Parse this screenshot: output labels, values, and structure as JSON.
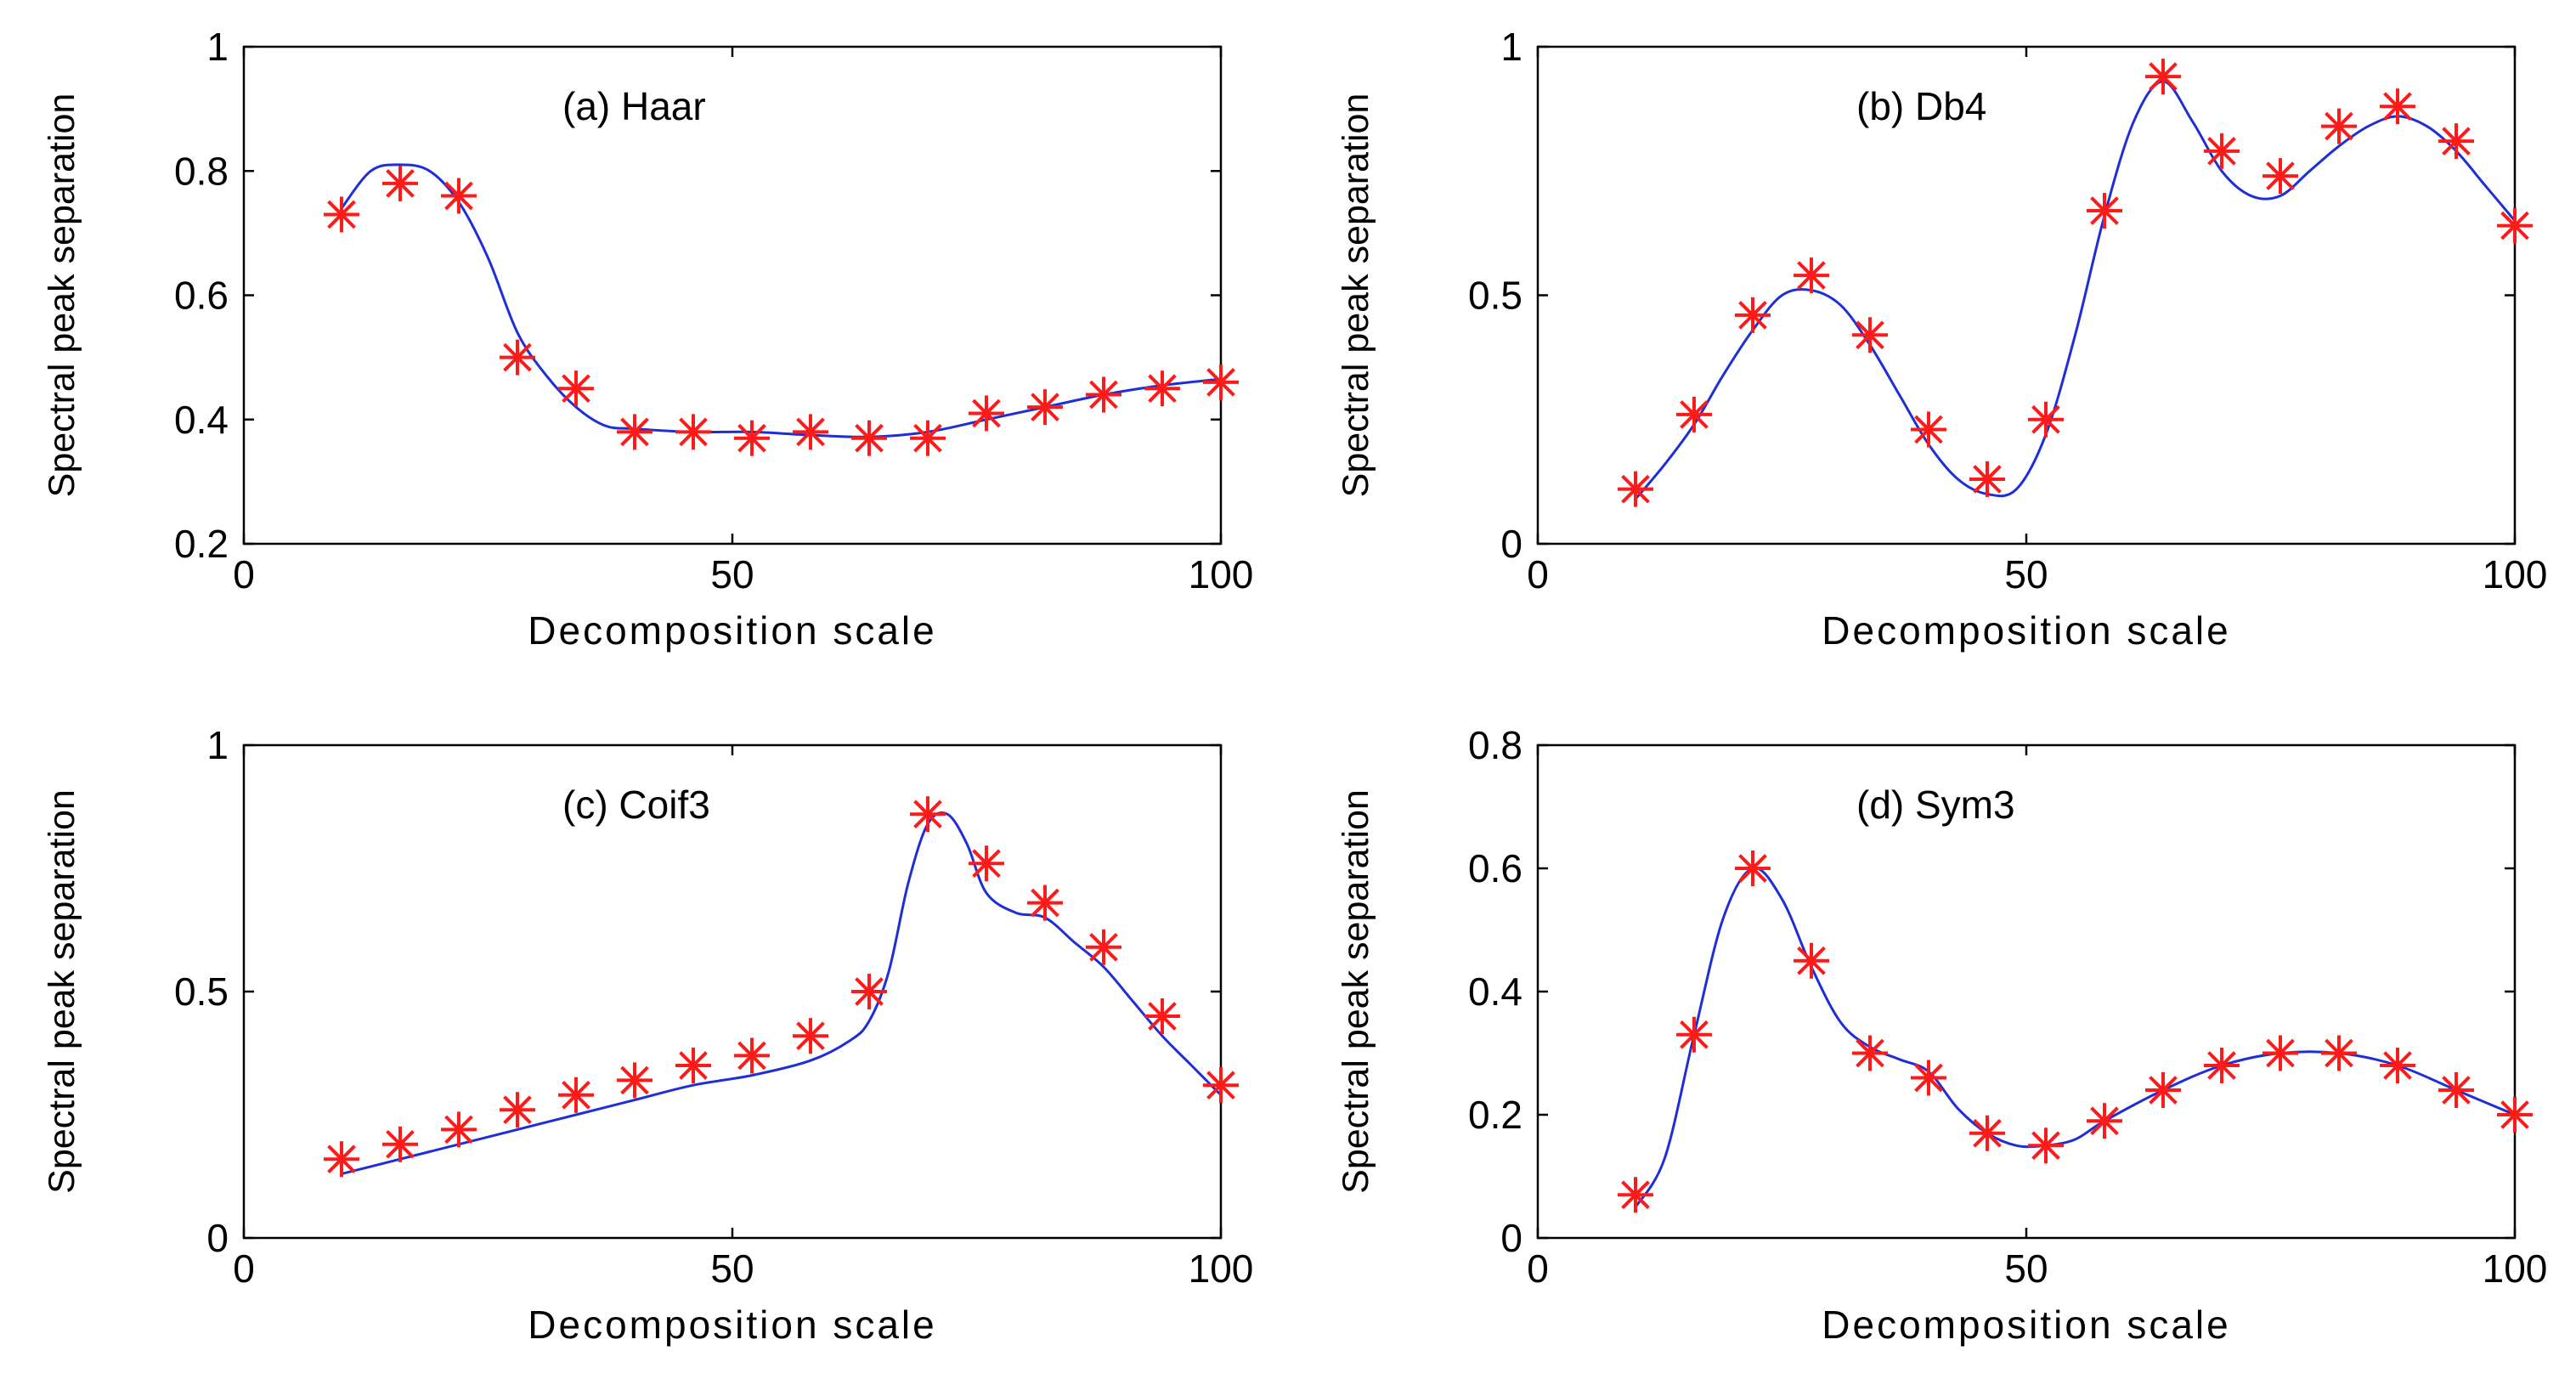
{
  "figure": {
    "colors": {
      "line": "#1f2fd6",
      "marker": "#ff1a1a",
      "axis": "#000000",
      "background": "#ffffff"
    }
  },
  "chart_data": [
    {
      "type": "line",
      "panel": "a",
      "title": "(a)  Haar",
      "xlabel": "Decomposition scale",
      "ylabel": "Spectral peak separation",
      "xlim": [
        0,
        100
      ],
      "ylim": [
        0.2,
        1
      ],
      "xticks": [
        0,
        50,
        100
      ],
      "xtick_labels": [
        "0",
        "50",
        "100"
      ],
      "yticks": [
        0.2,
        0.4,
        0.6,
        0.8,
        1
      ],
      "ytick_labels": [
        "0.2",
        "0.4",
        "0.6",
        "0.8",
        "1"
      ],
      "series": [
        {
          "name": "markers",
          "style": "markers",
          "x": [
            10,
            16,
            22,
            28,
            34,
            40,
            46,
            52,
            58,
            64,
            70,
            76,
            82,
            88,
            94,
            100
          ],
          "y": [
            0.73,
            0.78,
            0.76,
            0.5,
            0.45,
            0.38,
            0.38,
            0.37,
            0.38,
            0.37,
            0.37,
            0.41,
            0.42,
            0.44,
            0.45,
            0.46
          ]
        },
        {
          "name": "fit",
          "style": "line",
          "x": [
            10,
            13,
            16,
            19,
            22,
            25,
            28,
            31,
            34,
            37,
            40,
            46,
            52,
            58,
            64,
            70,
            76,
            82,
            88,
            94,
            100
          ],
          "y": [
            0.74,
            0.8,
            0.81,
            0.8,
            0.75,
            0.66,
            0.54,
            0.47,
            0.42,
            0.39,
            0.385,
            0.38,
            0.38,
            0.375,
            0.372,
            0.38,
            0.4,
            0.42,
            0.44,
            0.455,
            0.465
          ]
        }
      ]
    },
    {
      "type": "line",
      "panel": "b",
      "title": "(b)  Db4",
      "xlabel": "Decomposition scale",
      "ylabel": "Spectral peak separation",
      "xlim": [
        0,
        100
      ],
      "ylim": [
        0,
        1
      ],
      "xticks": [
        0,
        50,
        100
      ],
      "xtick_labels": [
        "0",
        "50",
        "100"
      ],
      "yticks": [
        0,
        0.5,
        1
      ],
      "ytick_labels": [
        "0",
        "0.5",
        "1"
      ],
      "series": [
        {
          "name": "markers",
          "style": "markers",
          "x": [
            10,
            16,
            22,
            28,
            34,
            40,
            46,
            52,
            58,
            64,
            70,
            76,
            82,
            88,
            94,
            100
          ],
          "y": [
            0.11,
            0.26,
            0.46,
            0.54,
            0.42,
            0.23,
            0.13,
            0.25,
            0.67,
            0.94,
            0.79,
            0.74,
            0.84,
            0.88,
            0.81,
            0.64
          ]
        },
        {
          "name": "fit",
          "style": "line",
          "x": [
            10,
            13,
            16,
            19,
            22,
            25,
            28,
            31,
            34,
            37,
            40,
            43,
            46,
            49,
            52,
            55,
            58,
            61,
            64,
            67,
            70,
            73,
            76,
            79,
            82,
            85,
            88,
            91,
            94,
            97,
            100
          ],
          "y": [
            0.09,
            0.16,
            0.24,
            0.34,
            0.43,
            0.5,
            0.51,
            0.48,
            0.4,
            0.3,
            0.2,
            0.13,
            0.1,
            0.11,
            0.22,
            0.42,
            0.66,
            0.85,
            0.93,
            0.85,
            0.75,
            0.7,
            0.7,
            0.75,
            0.8,
            0.84,
            0.86,
            0.84,
            0.79,
            0.72,
            0.65
          ]
        }
      ]
    },
    {
      "type": "line",
      "panel": "c",
      "title": "(c)  Coif3",
      "xlabel": "Decomposition scale",
      "ylabel": "Spectral peak separation",
      "xlim": [
        0,
        100
      ],
      "ylim": [
        0,
        1
      ],
      "xticks": [
        0,
        50,
        100
      ],
      "xtick_labels": [
        "0",
        "50",
        "100"
      ],
      "yticks": [
        0,
        0.5,
        1
      ],
      "ytick_labels": [
        "0",
        "0.5",
        "1"
      ],
      "series": [
        {
          "name": "markers",
          "style": "markers",
          "x": [
            10,
            16,
            22,
            28,
            34,
            40,
            46,
            52,
            58,
            64,
            70,
            76,
            82,
            88,
            94,
            100
          ],
          "y": [
            0.16,
            0.19,
            0.22,
            0.26,
            0.29,
            0.32,
            0.35,
            0.37,
            0.41,
            0.5,
            0.86,
            0.76,
            0.68,
            0.59,
            0.45,
            0.31
          ]
        },
        {
          "name": "fit",
          "style": "line",
          "x": [
            10,
            16,
            22,
            28,
            34,
            40,
            46,
            52,
            58,
            62,
            64,
            66,
            68,
            70,
            72,
            74,
            76,
            79,
            82,
            85,
            88,
            91,
            94,
            97,
            100
          ],
          "y": [
            0.13,
            0.16,
            0.19,
            0.22,
            0.25,
            0.28,
            0.31,
            0.33,
            0.36,
            0.4,
            0.44,
            0.54,
            0.72,
            0.84,
            0.86,
            0.8,
            0.7,
            0.66,
            0.65,
            0.6,
            0.55,
            0.48,
            0.41,
            0.35,
            0.29
          ]
        }
      ]
    },
    {
      "type": "line",
      "panel": "d",
      "title": "(d)  Sym3",
      "xlabel": "Decomposition scale",
      "ylabel": "Spectral peak separation",
      "xlim": [
        0,
        100
      ],
      "ylim": [
        0,
        0.8
      ],
      "xticks": [
        0,
        50,
        100
      ],
      "xtick_labels": [
        "0",
        "50",
        "100"
      ],
      "yticks": [
        0,
        0.2,
        0.4,
        0.6,
        0.8
      ],
      "ytick_labels": [
        "0",
        "0.2",
        "0.4",
        "0.6",
        "0.8"
      ],
      "series": [
        {
          "name": "markers",
          "style": "markers",
          "x": [
            10,
            16,
            22,
            28,
            34,
            40,
            46,
            52,
            58,
            64,
            70,
            76,
            82,
            88,
            94,
            100
          ],
          "y": [
            0.07,
            0.33,
            0.6,
            0.45,
            0.3,
            0.26,
            0.17,
            0.15,
            0.19,
            0.24,
            0.28,
            0.3,
            0.3,
            0.28,
            0.24,
            0.2
          ]
        },
        {
          "name": "fit",
          "style": "line",
          "x": [
            10,
            13,
            16,
            19,
            22,
            25,
            28,
            31,
            34,
            37,
            40,
            43,
            46,
            49,
            52,
            55,
            58,
            64,
            70,
            76,
            82,
            88,
            94,
            100
          ],
          "y": [
            0.05,
            0.13,
            0.33,
            0.52,
            0.6,
            0.55,
            0.44,
            0.35,
            0.31,
            0.29,
            0.27,
            0.21,
            0.17,
            0.15,
            0.15,
            0.16,
            0.19,
            0.24,
            0.28,
            0.3,
            0.3,
            0.28,
            0.24,
            0.2
          ]
        }
      ]
    }
  ]
}
